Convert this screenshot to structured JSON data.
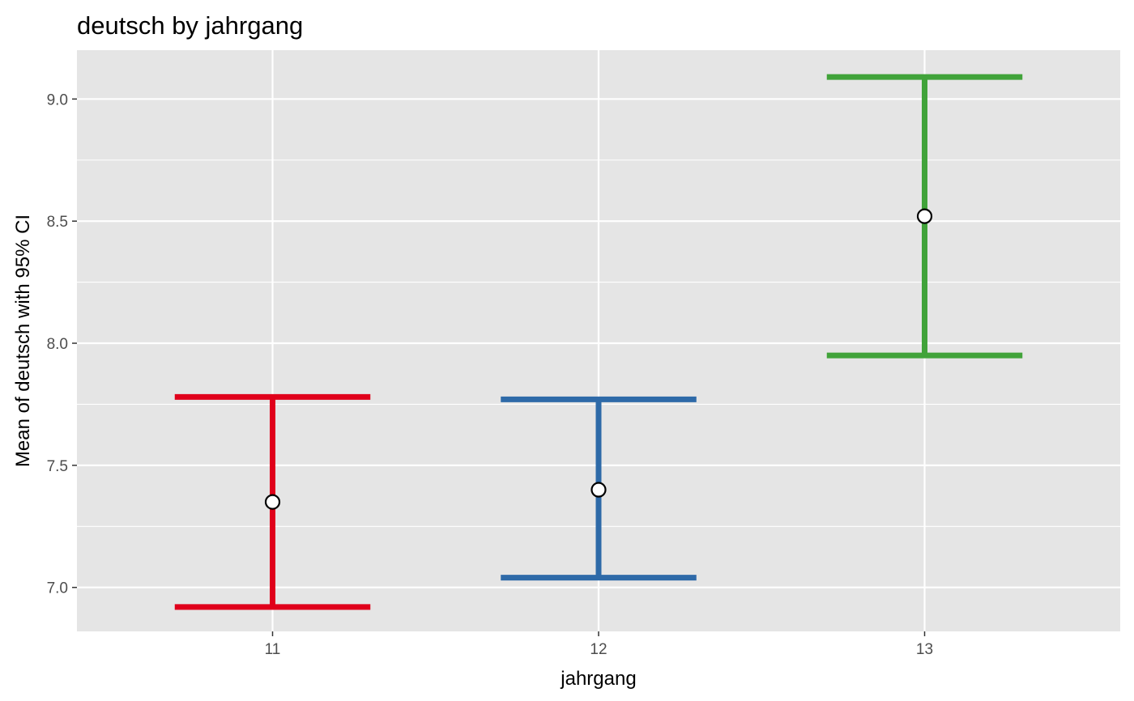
{
  "chart_data": {
    "type": "errorbar",
    "title": "deutsch by jahrgang",
    "xlabel": "jahrgang",
    "ylabel": "Mean of deutsch with 95% CI",
    "categories": [
      "11",
      "12",
      "13"
    ],
    "means": [
      7.35,
      7.4,
      8.52
    ],
    "ci_lower": [
      6.92,
      7.04,
      7.95
    ],
    "ci_upper": [
      7.78,
      7.77,
      9.09
    ],
    "colors": [
      "#E0001B",
      "#2E6AA8",
      "#41A33A"
    ],
    "ylim": [
      6.82,
      9.2
    ],
    "y_ticks": [
      "7.0",
      "7.5",
      "8.0",
      "8.5",
      "9.0"
    ],
    "y_tick_values": [
      7.0,
      7.5,
      8.0,
      8.5,
      9.0
    ],
    "grid": true,
    "panel_background": "#E5E5E5",
    "grid_color": "#FFFFFF"
  }
}
